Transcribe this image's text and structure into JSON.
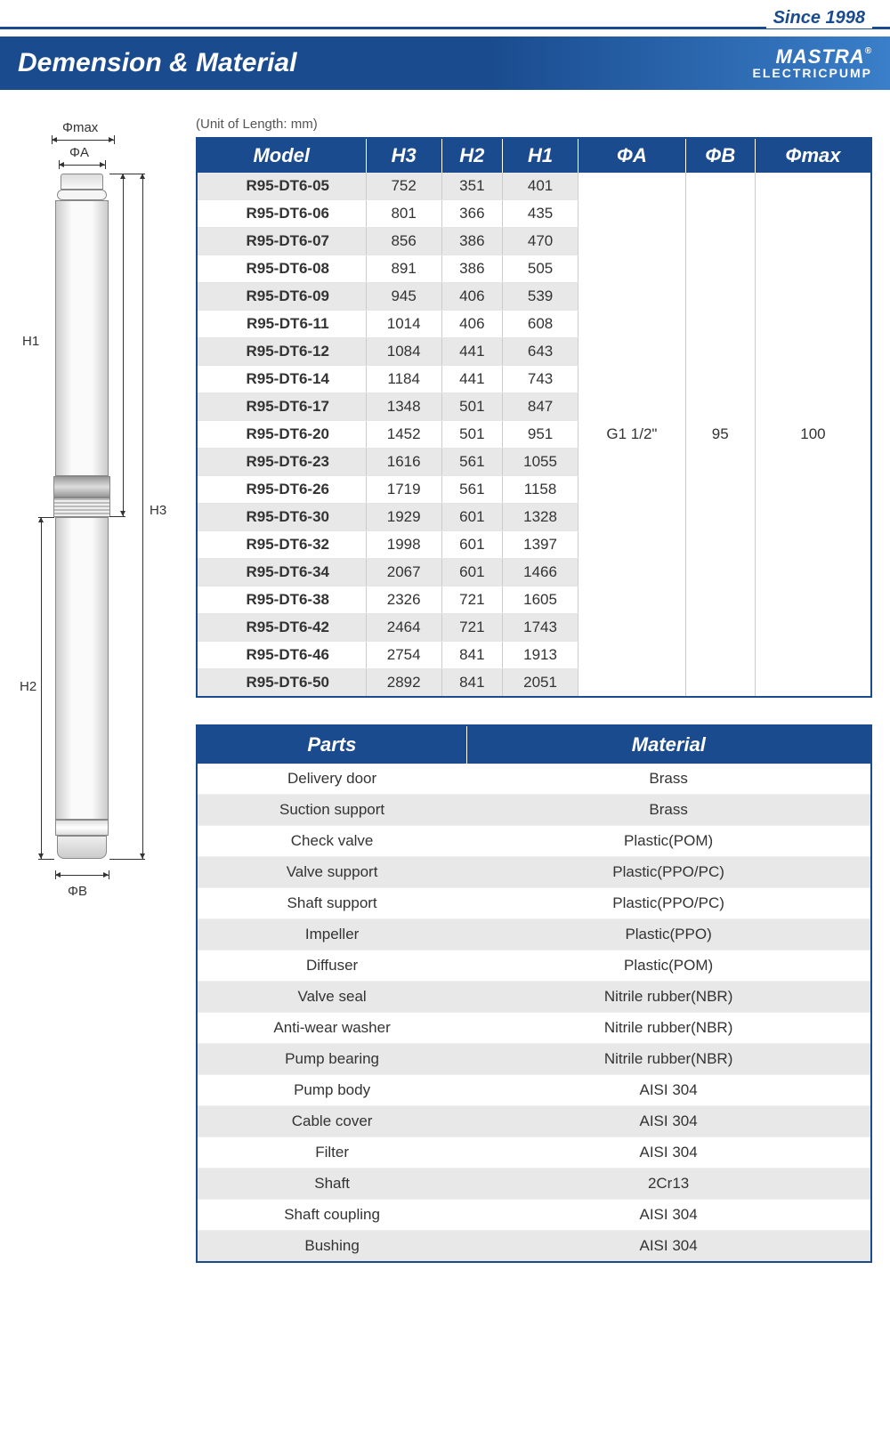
{
  "since": "Since 1998",
  "banner_title": "Demension & Material",
  "brand_logo": "MASTRA",
  "brand_sub": "ELECTRICPUMP",
  "unit_label": "(Unit of Length: mm)",
  "dim_table": {
    "headers": [
      "Model",
      "H3",
      "H2",
      "H1",
      "ΦA",
      "ΦB",
      "Φmax"
    ],
    "phi_a": "G1 1/2\"",
    "phi_b": "95",
    "phi_max": "100",
    "rows": [
      {
        "model": "R95-DT6-05",
        "h3": "752",
        "h2": "351",
        "h1": "401"
      },
      {
        "model": "R95-DT6-06",
        "h3": "801",
        "h2": "366",
        "h1": "435"
      },
      {
        "model": "R95-DT6-07",
        "h3": "856",
        "h2": "386",
        "h1": "470"
      },
      {
        "model": "R95-DT6-08",
        "h3": "891",
        "h2": "386",
        "h1": "505"
      },
      {
        "model": "R95-DT6-09",
        "h3": "945",
        "h2": "406",
        "h1": "539"
      },
      {
        "model": "R95-DT6-11",
        "h3": "1014",
        "h2": "406",
        "h1": "608"
      },
      {
        "model": "R95-DT6-12",
        "h3": "1084",
        "h2": "441",
        "h1": "643"
      },
      {
        "model": "R95-DT6-14",
        "h3": "1184",
        "h2": "441",
        "h1": "743"
      },
      {
        "model": "R95-DT6-17",
        "h3": "1348",
        "h2": "501",
        "h1": "847"
      },
      {
        "model": "R95-DT6-20",
        "h3": "1452",
        "h2": "501",
        "h1": "951"
      },
      {
        "model": "R95-DT6-23",
        "h3": "1616",
        "h2": "561",
        "h1": "1055"
      },
      {
        "model": "R95-DT6-26",
        "h3": "1719",
        "h2": "561",
        "h1": "1158"
      },
      {
        "model": "R95-DT6-30",
        "h3": "1929",
        "h2": "601",
        "h1": "1328"
      },
      {
        "model": "R95-DT6-32",
        "h3": "1998",
        "h2": "601",
        "h1": "1397"
      },
      {
        "model": "R95-DT6-34",
        "h3": "2067",
        "h2": "601",
        "h1": "1466"
      },
      {
        "model": "R95-DT6-38",
        "h3": "2326",
        "h2": "721",
        "h1": "1605"
      },
      {
        "model": "R95-DT6-42",
        "h3": "2464",
        "h2": "721",
        "h1": "1743"
      },
      {
        "model": "R95-DT6-46",
        "h3": "2754",
        "h2": "841",
        "h1": "1913"
      },
      {
        "model": "R95-DT6-50",
        "h3": "2892",
        "h2": "841",
        "h1": "2051"
      }
    ]
  },
  "mat_table": {
    "headers": [
      "Parts",
      "Material"
    ],
    "rows": [
      {
        "part": "Delivery door",
        "mat": "Brass"
      },
      {
        "part": "Suction support",
        "mat": "Brass"
      },
      {
        "part": "Check valve",
        "mat": "Plastic(POM)"
      },
      {
        "part": "Valve support",
        "mat": "Plastic(PPO/PC)"
      },
      {
        "part": "Shaft support",
        "mat": "Plastic(PPO/PC)"
      },
      {
        "part": "Impeller",
        "mat": "Plastic(PPO)"
      },
      {
        "part": "Diffuser",
        "mat": "Plastic(POM)"
      },
      {
        "part": "Valve seal",
        "mat": "Nitrile rubber(NBR)"
      },
      {
        "part": "Anti-wear washer",
        "mat": "Nitrile rubber(NBR)"
      },
      {
        "part": "Pump bearing",
        "mat": "Nitrile rubber(NBR)"
      },
      {
        "part": "Pump body",
        "mat": "AISI 304"
      },
      {
        "part": "Cable cover",
        "mat": "AISI 304"
      },
      {
        "part": "Filter",
        "mat": "AISI 304"
      },
      {
        "part": "Shaft",
        "mat": "2Cr13"
      },
      {
        "part": "Shaft coupling",
        "mat": "AISI 304"
      },
      {
        "part": "Bushing",
        "mat": "AISI 304"
      }
    ]
  },
  "diagram": {
    "phimax": "Φmax",
    "phia": "ΦA",
    "phib": "ΦB",
    "h1": "H1",
    "h2": "H2",
    "h3": "H3"
  }
}
